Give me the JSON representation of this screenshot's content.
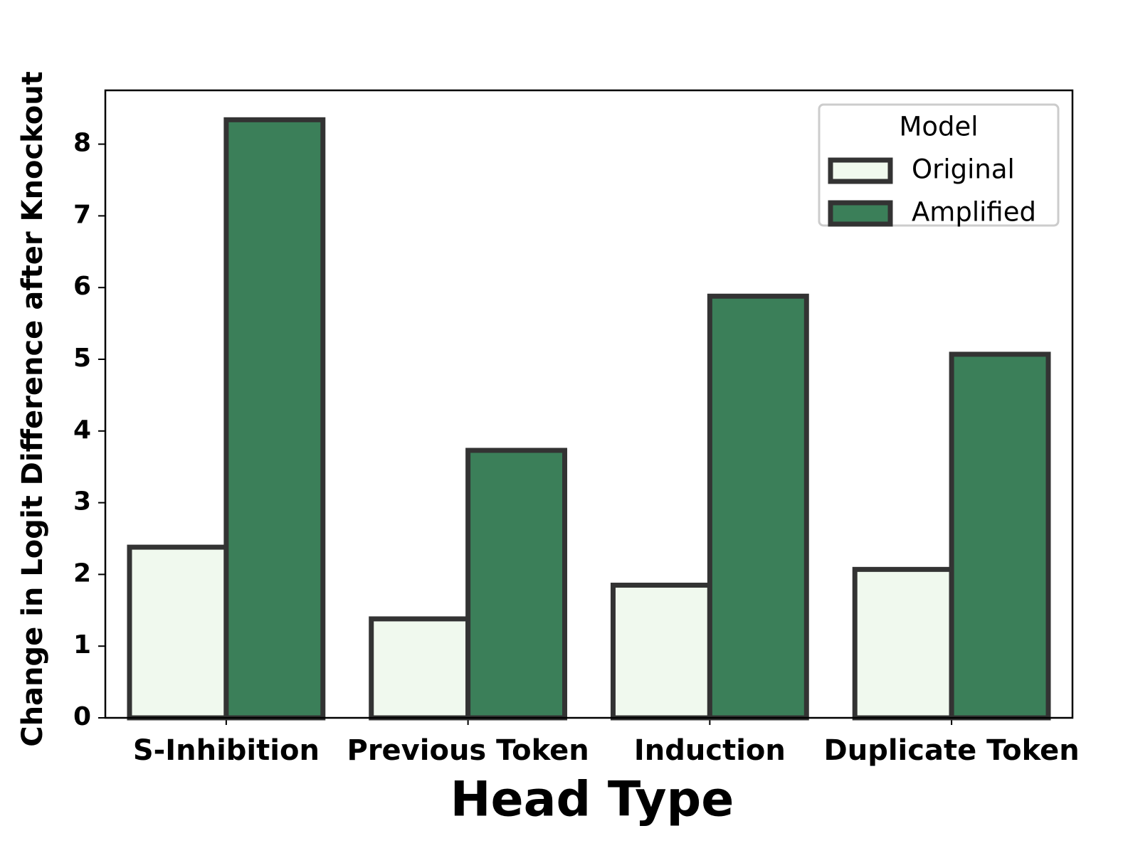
{
  "chart_data": {
    "type": "bar",
    "x_label": "Head Type",
    "y_label": "Change in Logit Difference after Knockout",
    "categories": [
      "S-Inhibition",
      "Previous Token",
      "Induction",
      "Duplicate Token"
    ],
    "series": [
      {
        "name": "Original",
        "color": "#f0f9ee",
        "values": [
          2.38,
          1.38,
          1.85,
          2.07
        ]
      },
      {
        "name": "Amplified",
        "color": "#3b7f59",
        "values": [
          8.34,
          3.73,
          5.88,
          5.07
        ]
      }
    ],
    "edge_color": "#333333",
    "ylim": [
      0,
      8.75
    ],
    "yticks": [
      0,
      1,
      2,
      3,
      4,
      5,
      6,
      7,
      8
    ],
    "legend_title": "Model",
    "legend_position": "upper-right",
    "grid": false
  }
}
